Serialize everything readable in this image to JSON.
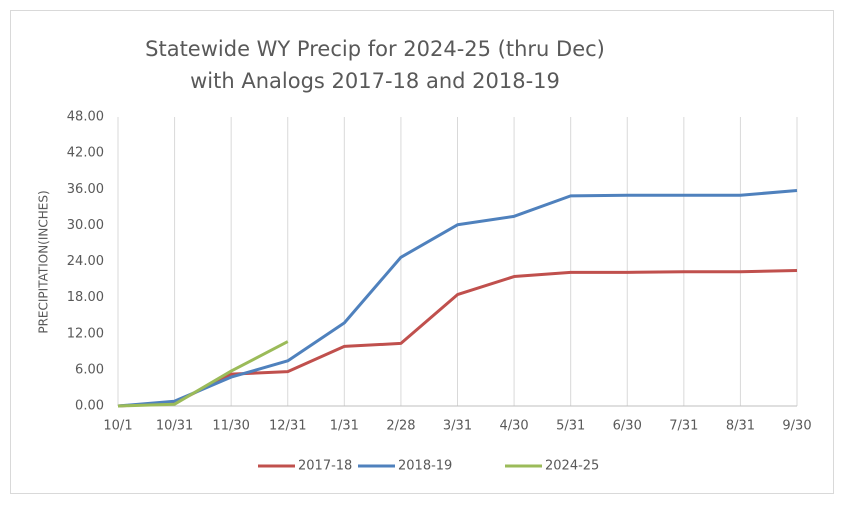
{
  "chart_data": {
    "type": "line",
    "title": [
      "Statewide WY Precip for 2024-25 (thru Dec)",
      "with Analogs 2017-18 and 2018-19"
    ],
    "y_label": "PRECIPITATION(INCHES)",
    "categories": [
      "10/1",
      "10/31",
      "11/30",
      "12/31",
      "1/31",
      "2/28",
      "3/31",
      "4/30",
      "5/31",
      "6/30",
      "7/31",
      "8/31",
      "9/30"
    ],
    "series": [
      {
        "name": "2017-18",
        "color": "#c0504d",
        "values": [
          0,
          0.5,
          5.3,
          5.7,
          9.9,
          10.4,
          18.5,
          21.5,
          22.2,
          22.2,
          22.3,
          22.3,
          22.5
        ]
      },
      {
        "name": "2018-19",
        "color": "#4f81bd",
        "values": [
          0,
          0.8,
          4.8,
          7.5,
          13.8,
          24.7,
          30.1,
          31.5,
          34.9,
          35.0,
          35.0,
          35.0,
          35.8
        ]
      },
      {
        "name": "2024-25",
        "color": "#9bbb59",
        "values": [
          0,
          0.3,
          5.8,
          10.7,
          null,
          null,
          null,
          null,
          null,
          null,
          null,
          null,
          null
        ]
      }
    ],
    "ylim": [
      0,
      48
    ],
    "yticks": [
      {
        "value": 0,
        "label": "0.00"
      },
      {
        "value": 6,
        "label": "6.00"
      },
      {
        "value": 12,
        "label": "12.00"
      },
      {
        "value": 18,
        "label": "18.00"
      },
      {
        "value": 24,
        "label": "24.00"
      },
      {
        "value": 30,
        "label": "30.00"
      },
      {
        "value": 36,
        "label": "36.00"
      },
      {
        "value": 42,
        "label": "42.00"
      },
      {
        "value": 48,
        "label": "48.00"
      }
    ],
    "grid": "vertical",
    "legend": "bottom"
  }
}
